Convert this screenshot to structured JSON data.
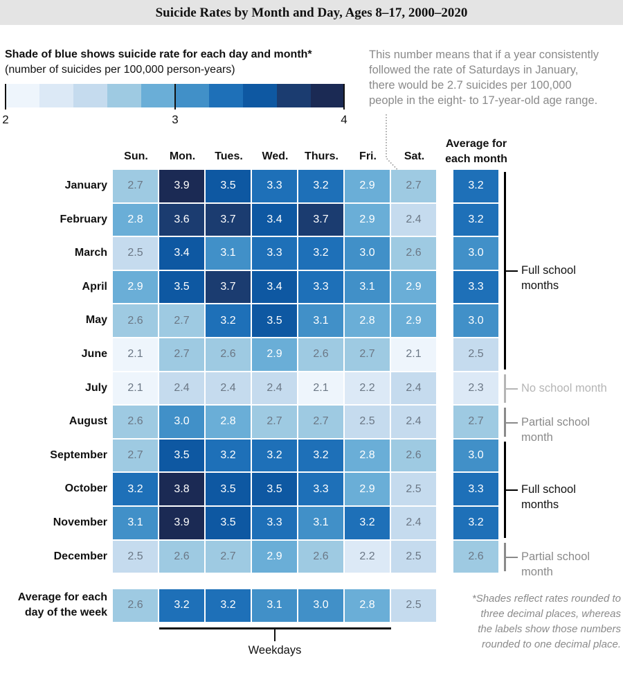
{
  "chart_data": {
    "type": "heatmap",
    "title": "Suicide Rates by Month and Day, Ages 8–17, 2000–2020",
    "legend": {
      "title": "Shade of blue shows suicide rate for each day and month*",
      "subtitle": "(number of suicides per 100,000 person-years)",
      "range": [
        2,
        4
      ],
      "tick_labels": [
        "2",
        "3",
        "4"
      ],
      "colors": [
        "#eef5fc",
        "#dce9f6",
        "#c5dbee",
        "#9ecae2",
        "#6aaed7",
        "#4190c8",
        "#1e70b8",
        "#0e58a2",
        "#1b3c70",
        "#1b2a54"
      ]
    },
    "columns": [
      "Sun.",
      "Mon.",
      "Tues.",
      "Wed.",
      "Thurs.",
      "Fri.",
      "Sat."
    ],
    "month_avg_header": [
      "Average for",
      "each month"
    ],
    "rows": [
      "January",
      "February",
      "March",
      "April",
      "May",
      "June",
      "July",
      "August",
      "September",
      "October",
      "November",
      "December"
    ],
    "values": [
      [
        2.7,
        3.9,
        3.5,
        3.3,
        3.2,
        2.9,
        2.7
      ],
      [
        2.8,
        3.6,
        3.7,
        3.4,
        3.7,
        2.9,
        2.4
      ],
      [
        2.5,
        3.4,
        3.1,
        3.3,
        3.2,
        3.0,
        2.6
      ],
      [
        2.9,
        3.5,
        3.7,
        3.4,
        3.3,
        3.1,
        2.9
      ],
      [
        2.6,
        2.7,
        3.2,
        3.5,
        3.1,
        2.8,
        2.9
      ],
      [
        2.1,
        2.7,
        2.6,
        2.9,
        2.6,
        2.7,
        2.1
      ],
      [
        2.1,
        2.4,
        2.4,
        2.4,
        2.1,
        2.2,
        2.4
      ],
      [
        2.6,
        3.0,
        2.8,
        2.7,
        2.7,
        2.5,
        2.4
      ],
      [
        2.7,
        3.5,
        3.2,
        3.2,
        3.2,
        2.8,
        2.6
      ],
      [
        3.2,
        3.8,
        3.5,
        3.5,
        3.3,
        2.9,
        2.5
      ],
      [
        3.1,
        3.9,
        3.5,
        3.3,
        3.1,
        3.2,
        2.4
      ],
      [
        2.5,
        2.6,
        2.7,
        2.9,
        2.6,
        2.2,
        2.5
      ]
    ],
    "month_averages": [
      3.2,
      3.2,
      3.0,
      3.3,
      3.0,
      2.5,
      2.3,
      2.7,
      3.0,
      3.3,
      3.2,
      2.6
    ],
    "day_avg_label": [
      "Average for each",
      "day of the week"
    ],
    "day_averages": [
      2.6,
      3.2,
      3.2,
      3.1,
      3.0,
      2.8,
      2.5
    ],
    "annotation": [
      "This number means that if a year consistently",
      "followed the rate of Saturdays in January,",
      "there would be 2.7 suicides per 100,000",
      "people in the eight- to 17-year-old age range."
    ],
    "school_groups": [
      {
        "from": 0,
        "to": 5,
        "label": [
          "Full school",
          "months"
        ],
        "color": "#000000"
      },
      {
        "from": 6,
        "to": 6,
        "label": [
          "No school month"
        ],
        "color": "#b5b5b5"
      },
      {
        "from": 7,
        "to": 7,
        "label": [
          "Partial school",
          "month"
        ],
        "color": "#8a8a8a"
      },
      {
        "from": 8,
        "to": 10,
        "label": [
          "Full school",
          "months"
        ],
        "color": "#000000"
      },
      {
        "from": 11,
        "to": 11,
        "label": [
          "Partial school",
          "month"
        ],
        "color": "#8a8a8a"
      }
    ],
    "weekdays_label": "Weekdays",
    "footnote": [
      "*Shades reflect rates rounded to",
      "three decimal places, whereas",
      "the labels show those numbers",
      "rounded to one decimal place."
    ]
  }
}
